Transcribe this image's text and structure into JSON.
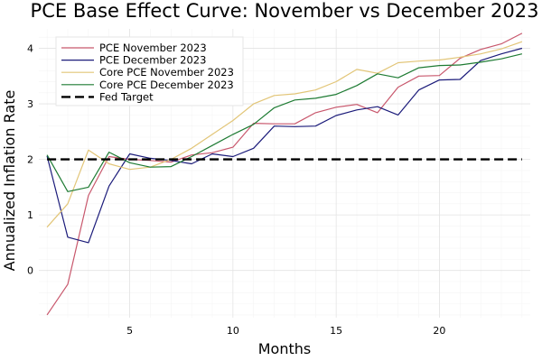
{
  "chart_data": {
    "type": "line",
    "title": "PCE Base Effect Curve: November vs December 2023",
    "xlabel": "Months",
    "ylabel": "Annualized Inflation Rate",
    "xlim": [
      0.6,
      24.4
    ],
    "ylim": [
      -0.85,
      4.35
    ],
    "xticks": [
      5,
      10,
      15,
      20
    ],
    "yticks": [
      0,
      1,
      2,
      3,
      4
    ],
    "grid": true,
    "legend_position": "top-left",
    "x": [
      1,
      2,
      3,
      4,
      5,
      6,
      7,
      8,
      9,
      10,
      11,
      12,
      13,
      14,
      15,
      16,
      17,
      18,
      19,
      20,
      21,
      22,
      23,
      24
    ],
    "series": [
      {
        "name": "PCE November 2023",
        "color": "#c8576c",
        "dash": "solid",
        "values": [
          -0.8,
          -0.25,
          1.35,
          2.05,
          2.0,
          1.98,
          1.95,
          2.08,
          2.12,
          2.22,
          2.65,
          2.64,
          2.64,
          2.84,
          2.94,
          2.99,
          2.84,
          3.3,
          3.5,
          3.51,
          3.82,
          3.98,
          4.08,
          4.27
        ]
      },
      {
        "name": "PCE December 2023",
        "color": "#1b1b7a",
        "dash": "solid",
        "values": [
          2.06,
          0.6,
          0.5,
          1.52,
          2.1,
          2.02,
          1.98,
          1.92,
          2.1,
          2.05,
          2.2,
          2.6,
          2.59,
          2.6,
          2.79,
          2.89,
          2.95,
          2.8,
          3.25,
          3.43,
          3.44,
          3.78,
          3.9,
          4.0
        ]
      },
      {
        "name": "Core PCE November 2023",
        "color": "#e2c577",
        "dash": "solid",
        "values": [
          0.78,
          1.2,
          2.17,
          1.92,
          1.82,
          1.86,
          2.0,
          2.2,
          2.45,
          2.7,
          3.0,
          3.15,
          3.18,
          3.25,
          3.4,
          3.62,
          3.55,
          3.74,
          3.77,
          3.79,
          3.84,
          3.9,
          3.99,
          4.12
        ]
      },
      {
        "name": "Core PCE December 2023",
        "color": "#1e7b33",
        "dash": "solid",
        "values": [
          2.08,
          1.42,
          1.5,
          2.13,
          1.94,
          1.86,
          1.87,
          2.05,
          2.25,
          2.45,
          2.63,
          2.93,
          3.07,
          3.1,
          3.17,
          3.33,
          3.54,
          3.47,
          3.65,
          3.69,
          3.7,
          3.75,
          3.81,
          3.9
        ]
      },
      {
        "name": "Fed Target",
        "color": "#000000",
        "dash": "dashed",
        "values": [
          2,
          2,
          2,
          2,
          2,
          2,
          2,
          2,
          2,
          2,
          2,
          2,
          2,
          2,
          2,
          2,
          2,
          2,
          2,
          2,
          2,
          2,
          2,
          2
        ]
      }
    ]
  }
}
